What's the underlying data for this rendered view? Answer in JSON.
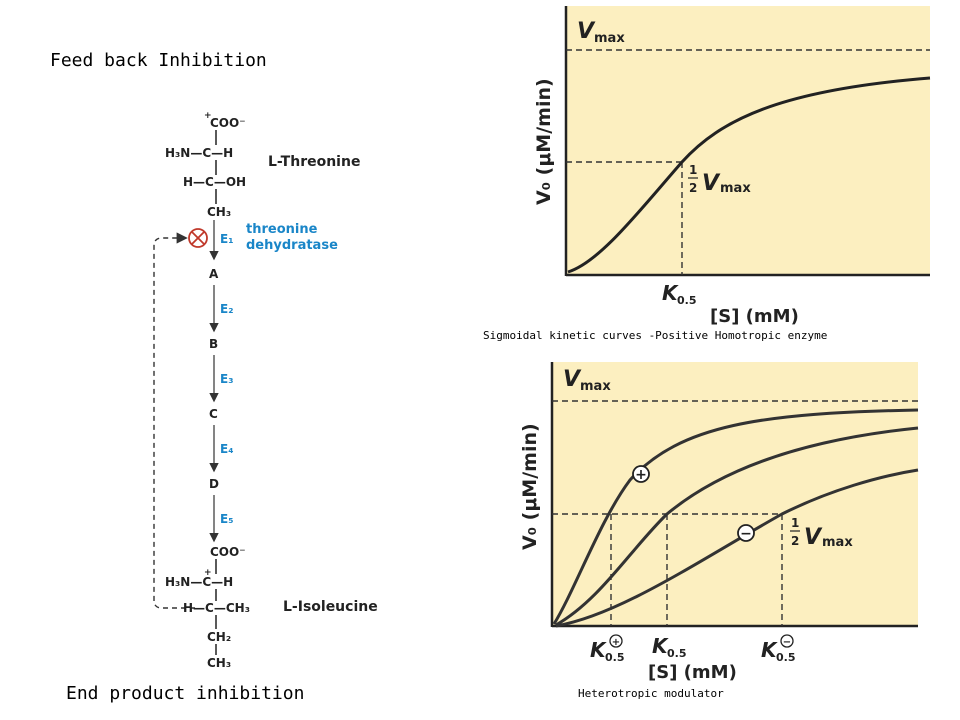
{
  "titles": {
    "feedback": "Feed back Inhibition",
    "end_product": "End product inhibition",
    "caption_top": "Sigmoidal kinetic curves -Positive Homotropic enzyme",
    "caption_bottom": "Heterotropic modulator"
  },
  "pathway": {
    "start": {
      "name": "L-Threonine",
      "rows": [
        "COO⁻",
        "H₃N—C—H",
        "H—C—OH",
        "CH₃"
      ],
      "charge": "+"
    },
    "enzyme1": {
      "label": "E₁",
      "name_line1": "threonine",
      "name_line2": "dehydratase"
    },
    "intermediates": [
      "A",
      "B",
      "C",
      "D"
    ],
    "enzymes": [
      "E₂",
      "E₃",
      "E₄",
      "E₅"
    ],
    "end": {
      "name": "L-Isoleucine",
      "rows": [
        "COO⁻",
        "H₃N—C—H",
        "H—C—CH₃",
        "CH₂",
        "CH₃"
      ],
      "charge": "+"
    },
    "inhibition_symbol": "⊗",
    "colors": {
      "enzyme_blue": "#1a86c8",
      "inhibit_red": "#c0392b"
    }
  },
  "chart_top": {
    "vmax": "V",
    "vmax_sub": "max",
    "half": "1",
    "half_den": "2",
    "half_vmax": "V",
    "half_vmax_sub": "max",
    "k": "K",
    "k_sub": "0.5",
    "ylabel": "V₀ (μM/min)",
    "xlabel": "[S] (mM)",
    "bg": "#fcefc0"
  },
  "chart_bottom": {
    "vmax": "V",
    "vmax_sub": "max",
    "half": "1",
    "half_den": "2",
    "half_vmax": "V",
    "half_vmax_sub": "max",
    "k_plus": "K",
    "k_plus_sub": "0.5",
    "k": "K",
    "k_sub": "0.5",
    "k_minus": "K",
    "k_minus_sub": "0.5",
    "plus": "+",
    "minus": "−",
    "ylabel": "V₀ (μM/min)",
    "xlabel": "[S] (mM)",
    "bg": "#fcefc0"
  }
}
